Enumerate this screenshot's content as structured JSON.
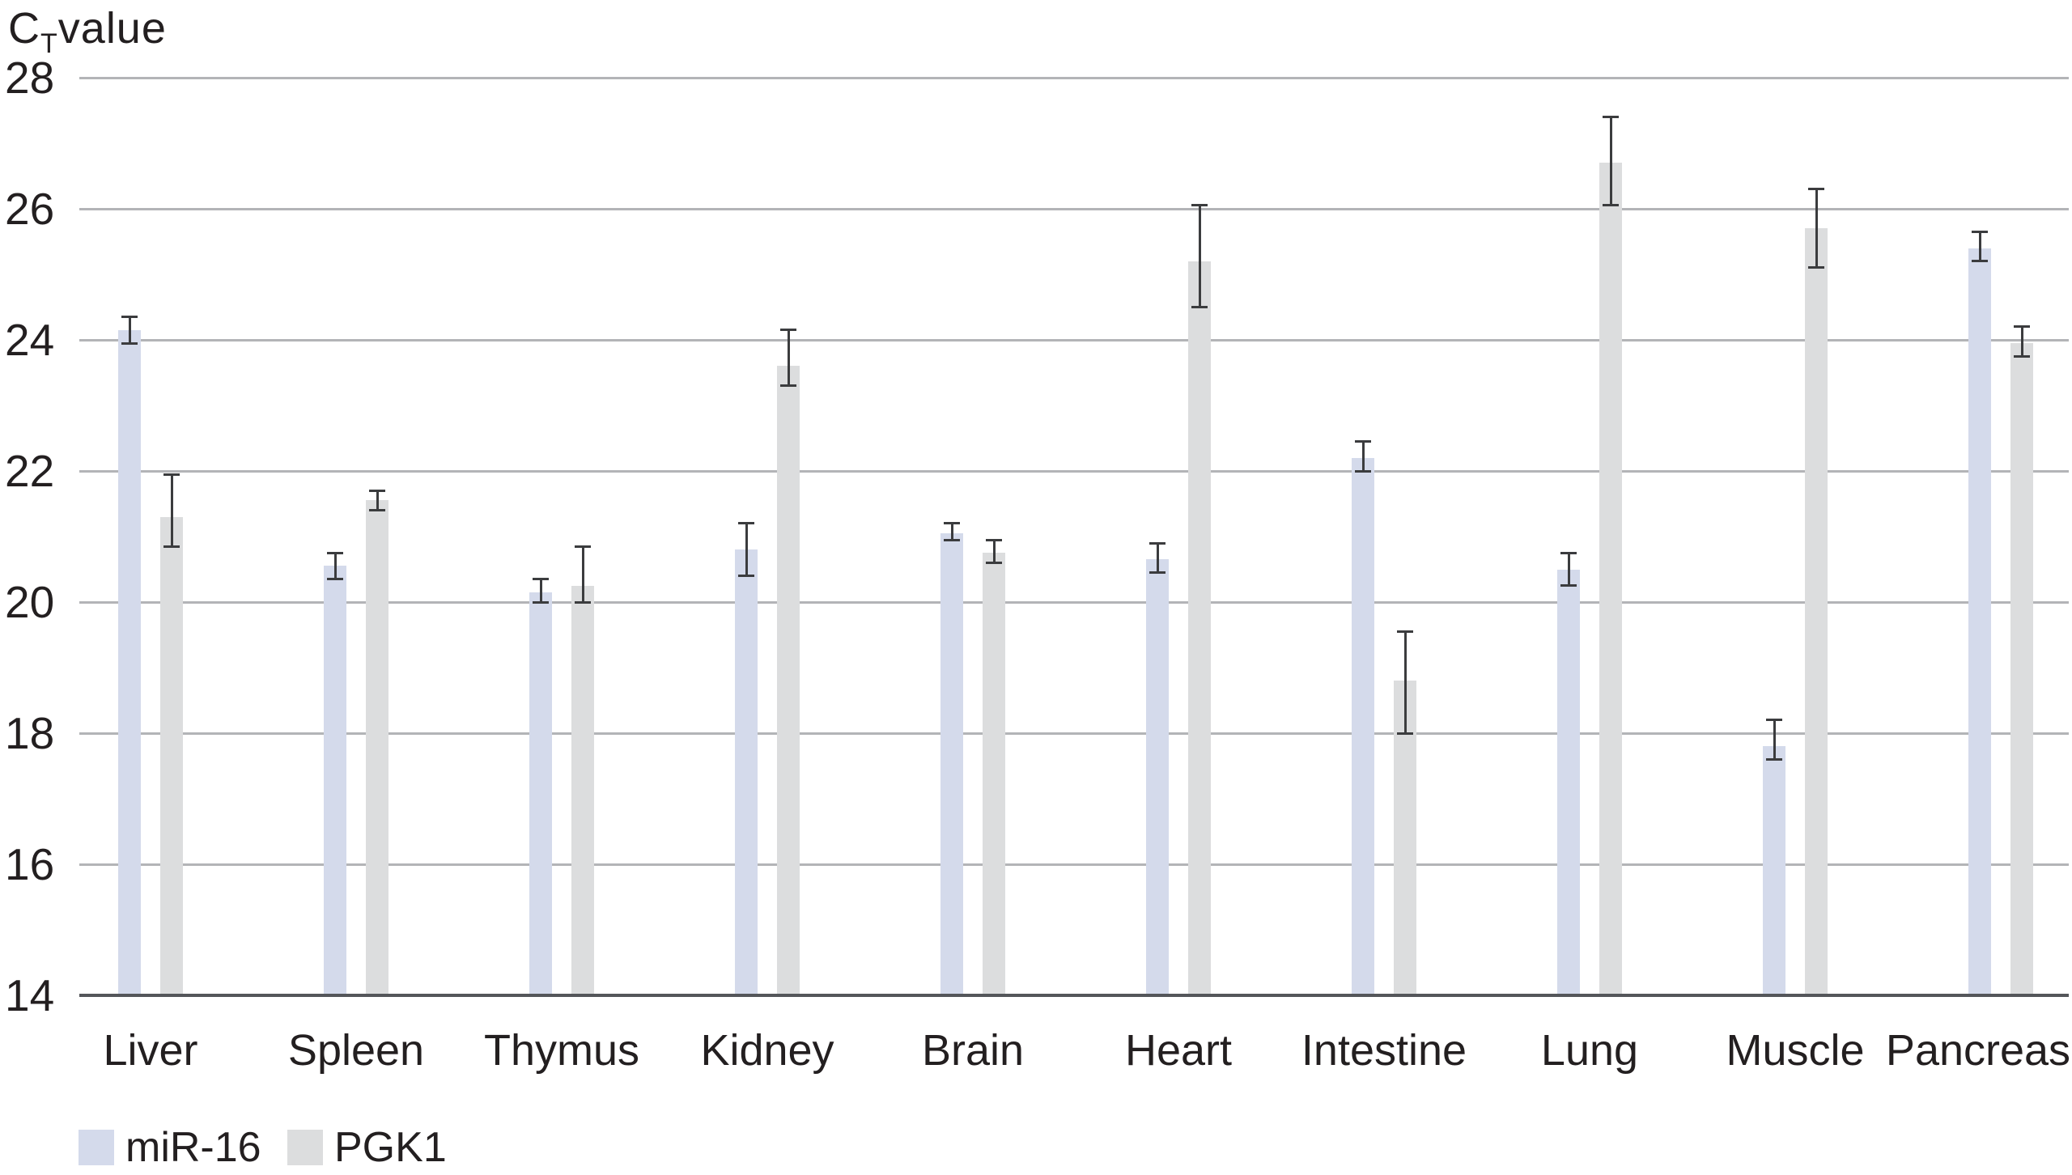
{
  "title": {
    "prefix": "C",
    "subscript": "T",
    "suffix": "value"
  },
  "y_axis": {
    "ticks": [
      "28",
      "26",
      "24",
      "22",
      "20",
      "18",
      "16",
      "14"
    ],
    "min": 14,
    "max": 28
  },
  "legend": [
    {
      "label": "miR-16",
      "color": "#d4daeb"
    },
    {
      "label": "PGK1",
      "color": "#dcddde"
    }
  ],
  "colors": {
    "mir16_bar": "#d4daeb",
    "pgk1_bar": "#dcddde",
    "gridline": "#b3b4b7",
    "axis": "#54565a",
    "error_bar": "#3b3c3e",
    "text": "#231f20",
    "background": "#ffffff"
  },
  "chart_data": {
    "type": "bar",
    "title": "CT value",
    "ylabel": "CT value",
    "xlabel": "",
    "ylim": [
      14,
      28
    ],
    "y_ticks": [
      28,
      26,
      24,
      22,
      20,
      18,
      16,
      14
    ],
    "grid": "horizontal",
    "legend_position": "bottom-left",
    "categories": [
      "Liver",
      "Spleen",
      "Thymus",
      "Kidney",
      "Brain",
      "Heart",
      "Intestine",
      "Lung",
      "Muscle",
      "Pancreas"
    ],
    "series": [
      {
        "name": "miR-16",
        "color": "#d4daeb",
        "values": [
          24.15,
          20.55,
          20.15,
          20.8,
          21.05,
          20.65,
          22.2,
          20.5,
          17.8,
          25.4
        ],
        "error_high": [
          24.35,
          20.75,
          20.35,
          21.2,
          21.2,
          20.9,
          22.45,
          20.75,
          18.2,
          25.65
        ],
        "error_low": [
          23.95,
          20.35,
          20.0,
          20.4,
          20.95,
          20.45,
          22.0,
          20.25,
          17.6,
          25.2
        ]
      },
      {
        "name": "PGK1",
        "color": "#dcddde",
        "values": [
          21.3,
          21.55,
          20.25,
          23.6,
          20.75,
          25.2,
          18.8,
          26.7,
          25.7,
          23.95
        ],
        "error_high": [
          21.95,
          21.7,
          20.85,
          24.15,
          20.95,
          26.05,
          19.55,
          27.4,
          26.3,
          24.2
        ],
        "error_low": [
          20.85,
          21.4,
          20.0,
          23.3,
          20.6,
          24.5,
          18.0,
          26.05,
          25.1,
          23.75
        ]
      }
    ]
  }
}
